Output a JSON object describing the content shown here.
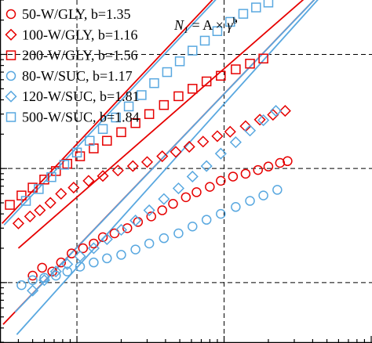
{
  "chart_data": {
    "type": "scatter",
    "title": "",
    "xlabel": "",
    "ylabel": "",
    "x_scale": "log",
    "y_scale": "log",
    "xlim": [
      3,
      1000
    ],
    "ylim": [
      3,
      3000
    ],
    "grid": "dashed at decades",
    "legend_position": "top-left",
    "formula": {
      "left": "N",
      "sub": "1",
      "mid": " = A × ",
      "rate": "γ̇",
      "sup": "b"
    },
    "colors": {
      "GLY": "#e60000",
      "SUC": "#59a8e0"
    },
    "series": [
      {
        "name": "50-W/GLY, b=1.35",
        "marker": "circle",
        "color": "#e60000",
        "fit": {
          "x": [
            3.15,
            1000
          ],
          "y": [
            4.3,
            10000
          ]
        },
        "x": [
          5,
          5.8,
          6.8,
          7.8,
          9.2,
          11,
          13,
          15,
          18,
          22,
          26,
          32,
          38,
          45,
          55,
          65,
          80,
          95,
          115,
          140,
          170,
          200,
          240,
          270
        ],
        "y": [
          11.5,
          13.5,
          12.5,
          15,
          18,
          20,
          22,
          25,
          27,
          30,
          34,
          38,
          43,
          49,
          56,
          62,
          69,
          78,
          85,
          90,
          97,
          104,
          112,
          116
        ]
      },
      {
        "name": "100-W/GLY, b=1.16",
        "marker": "diamond",
        "color": "#e60000",
        "fit": {
          "x": [
            4,
            1000
          ],
          "y": [
            20,
            10000
          ]
        },
        "x": [
          4,
          4.8,
          5.6,
          6.6,
          7.8,
          9.5,
          12,
          15,
          19,
          24,
          30,
          38,
          47,
          58,
          72,
          90,
          110,
          140,
          175,
          215,
          260
        ],
        "y": [
          33,
          38,
          43,
          50,
          60,
          68,
          78,
          86,
          96,
          105,
          114,
          128,
          140,
          155,
          172,
          192,
          210,
          235,
          268,
          296,
          320
        ]
      },
      {
        "name": "200-W/GLY, b=1.56",
        "marker": "square",
        "color": "#e60000",
        "fit": {
          "x": [
            3.1,
            200
          ],
          "y": [
            33,
            10000
          ]
        },
        "x": [
          3.5,
          4.2,
          5,
          6,
          7.2,
          8.6,
          10.5,
          13,
          16,
          20,
          25,
          31,
          39,
          49,
          61,
          76,
          95,
          120,
          150,
          185
        ],
        "y": [
          48,
          58,
          68,
          80,
          95,
          110,
          128,
          150,
          175,
          208,
          250,
          300,
          360,
          430,
          500,
          580,
          650,
          740,
          830,
          920
        ]
      },
      {
        "name": "80-W/SUC, b=1.17",
        "marker": "circle",
        "color": "#59a8e0",
        "fit": {
          "x": [
            3.8,
            1000
          ],
          "y": [
            5.5,
            10000
          ]
        },
        "x": [
          4.2,
          5,
          6,
          7.2,
          8.6,
          10.5,
          13,
          16,
          20,
          25,
          31,
          39,
          49,
          61,
          76,
          95,
          120,
          150,
          185,
          230
        ],
        "y": [
          9.5,
          10.5,
          11,
          11.5,
          12.5,
          13.8,
          15,
          16.3,
          17.5,
          19.5,
          22,
          24.5,
          27,
          31,
          35.5,
          40,
          46,
          52,
          58,
          65
        ]
      },
      {
        "name": "120-W/SUC, b=1.81",
        "marker": "diamond",
        "color": "#59a8e0",
        "fit": {
          "x": [
            3.9,
            1000
          ],
          "y": [
            3.5,
            10000
          ]
        },
        "x": [
          5,
          6,
          7.2,
          8.6,
          10.5,
          13,
          16,
          20,
          25,
          31,
          39,
          49,
          61,
          76,
          95,
          120,
          150,
          185,
          225
        ],
        "y": [
          8.5,
          10.5,
          12.5,
          14.5,
          17,
          20,
          24,
          29,
          35,
          43,
          54,
          67,
          85,
          105,
          135,
          170,
          215,
          265,
          320
        ]
      },
      {
        "name": "500-W/SUC, b=1.84",
        "marker": "square",
        "color": "#59a8e0",
        "fit": {
          "x": [
            3.2,
            210
          ],
          "y": [
            32,
            10000
          ]
        },
        "x": [
          4.5,
          5.5,
          6.7,
          8.2,
          10,
          12.2,
          15,
          18.4,
          22.5,
          27.5,
          33.5,
          41,
          50,
          61,
          74,
          90,
          110,
          135,
          165,
          200
        ],
        "y": [
          52,
          66,
          84,
          108,
          138,
          175,
          222,
          280,
          350,
          440,
          560,
          700,
          870,
          1080,
          1320,
          1600,
          1930,
          2270,
          2580,
          2850
        ]
      }
    ]
  }
}
